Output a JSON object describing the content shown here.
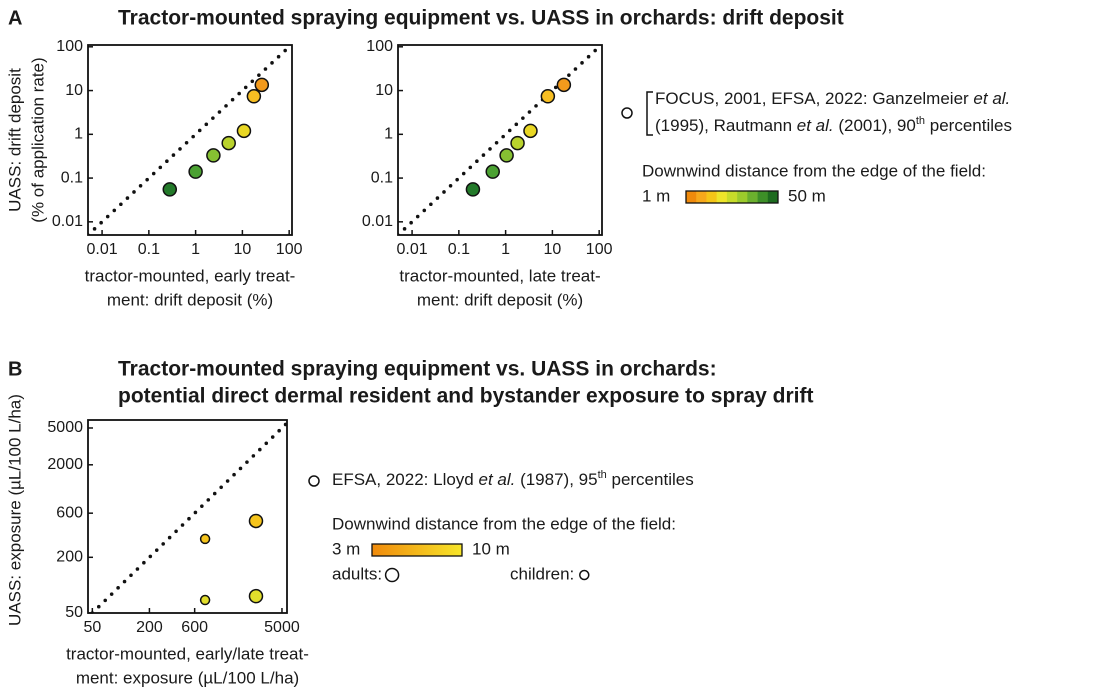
{
  "panels": [
    {
      "label": "A",
      "title": [
        "Tractor-mounted spraying equipment vs. UASS in orchards: drift deposit"
      ]
    },
    {
      "label": "B",
      "title": [
        "Tractor-mounted spraying equipment vs. UASS in orchards:",
        "potential direct dermal resident and bystander exposure to spray drift"
      ]
    }
  ],
  "chart_data": [
    {
      "type": "scatter",
      "x_label": [
        "tractor-mounted, early treat-",
        "ment: drift deposit (%)"
      ],
      "y_label": [
        "UASS: drift deposit",
        "(% of application rate)"
      ],
      "log_x": true,
      "log_y": true,
      "identity_line": true,
      "xlim": [
        0.005,
        115
      ],
      "ylim": [
        0.005,
        110
      ],
      "xticks": [
        0.01,
        0.1,
        1,
        10,
        100
      ],
      "yticks": [
        0.01,
        0.1,
        1,
        10,
        100
      ],
      "series": [
        {
          "marker_size": 6.5,
          "x": [
            26,
            17.6,
            10.8,
            5.1,
            2.4,
            1,
            0.28
          ],
          "values": [
            13.5,
            7.4,
            1.2,
            0.63,
            0.33,
            0.14,
            0.055
          ],
          "colors": [
            "#f39a1c",
            "#f7be22",
            "#e9d724",
            "#b9d22c",
            "#86c032",
            "#4ba132",
            "#237a2a"
          ]
        }
      ]
    },
    {
      "type": "scatter",
      "x_label": [
        "tractor-mounted, late treat-",
        "ment: drift deposit (%)"
      ],
      "log_x": true,
      "log_y": true,
      "identity_line": true,
      "xlim": [
        0.005,
        115
      ],
      "ylim": [
        0.005,
        110
      ],
      "xticks": [
        0.01,
        0.1,
        1,
        10,
        100
      ],
      "yticks": [
        0.01,
        0.1,
        1,
        10,
        100
      ],
      "series": [
        {
          "marker_size": 6.5,
          "x": [
            17.6,
            8,
            3.4,
            1.8,
            1.05,
            0.53,
            0.2
          ],
          "values": [
            13.5,
            7.4,
            1.2,
            0.63,
            0.33,
            0.14,
            0.055
          ],
          "colors": [
            "#f39a1c",
            "#f7be22",
            "#e9d724",
            "#b9d22c",
            "#86c032",
            "#4ba132",
            "#237a2a"
          ]
        }
      ]
    },
    {
      "type": "scatter",
      "x_label": [
        "tractor-mounted, early/late treat-",
        "ment: exposure (µL/100 L/ha)"
      ],
      "y_label": [
        "UASS: exposure (µL/100 L/ha)"
      ],
      "log_x": true,
      "log_y": true,
      "identity_line": true,
      "xlim": [
        45,
        5650
      ],
      "ylim": [
        50,
        6100
      ],
      "xticks": [
        50,
        200,
        600,
        5000
      ],
      "yticks": [
        50,
        200,
        600,
        2000,
        5000
      ],
      "series": [
        {
          "name": "adults:",
          "marker_size": 6.5,
          "x": [
            2660,
            2660
          ],
          "values": [
            494,
            76
          ],
          "colors": [
            "#f5c41c",
            "#e2de2c"
          ]
        },
        {
          "name": "children:",
          "marker_size": 4.5,
          "x": [
            773,
            773
          ],
          "values": [
            316,
            69
          ],
          "colors": [
            "#f5c41c",
            "#e2de2c"
          ]
        }
      ]
    }
  ],
  "legends": [
    {
      "marker_size": 5,
      "lines": [
        [
          {
            "text": "FOCUS, 2001, EFSA, 2022: Ganzelmeier "
          },
          {
            "text": "et al.",
            "italic": true
          }
        ],
        [
          {
            "text": "(1995), Rautmann "
          },
          {
            "text": "et al.",
            "italic": true
          },
          {
            "text": " (2001), 90"
          },
          {
            "text": "th",
            "sup": true
          },
          {
            "text": " percentiles"
          }
        ]
      ],
      "colorbar": {
        "title": "Downwind distance from the edge of the field:",
        "min_label": "1 m",
        "max_label": "50 m",
        "continuous": false,
        "colors": [
          "#f08a0c",
          "#f7a81b",
          "#f5c518",
          "#eee52a",
          "#c7dc2a",
          "#9ccb2c",
          "#6bb02e",
          "#3d8f28",
          "#1d6b1f"
        ]
      }
    },
    {
      "marker_size": 5,
      "lines": [
        [
          {
            "text": "EFSA, 2022: Lloyd "
          },
          {
            "text": "et al.",
            "italic": true
          },
          {
            "text": " (1987), 95"
          },
          {
            "text": "th",
            "sup": true
          },
          {
            "text": " percentiles"
          }
        ]
      ],
      "colorbar": {
        "title": "Downwind distance from the edge of the field:",
        "min_label": "3 m",
        "max_label": "10 m",
        "continuous": true,
        "colors": [
          "#f08a0c",
          "#f7e62a"
        ]
      }
    }
  ]
}
